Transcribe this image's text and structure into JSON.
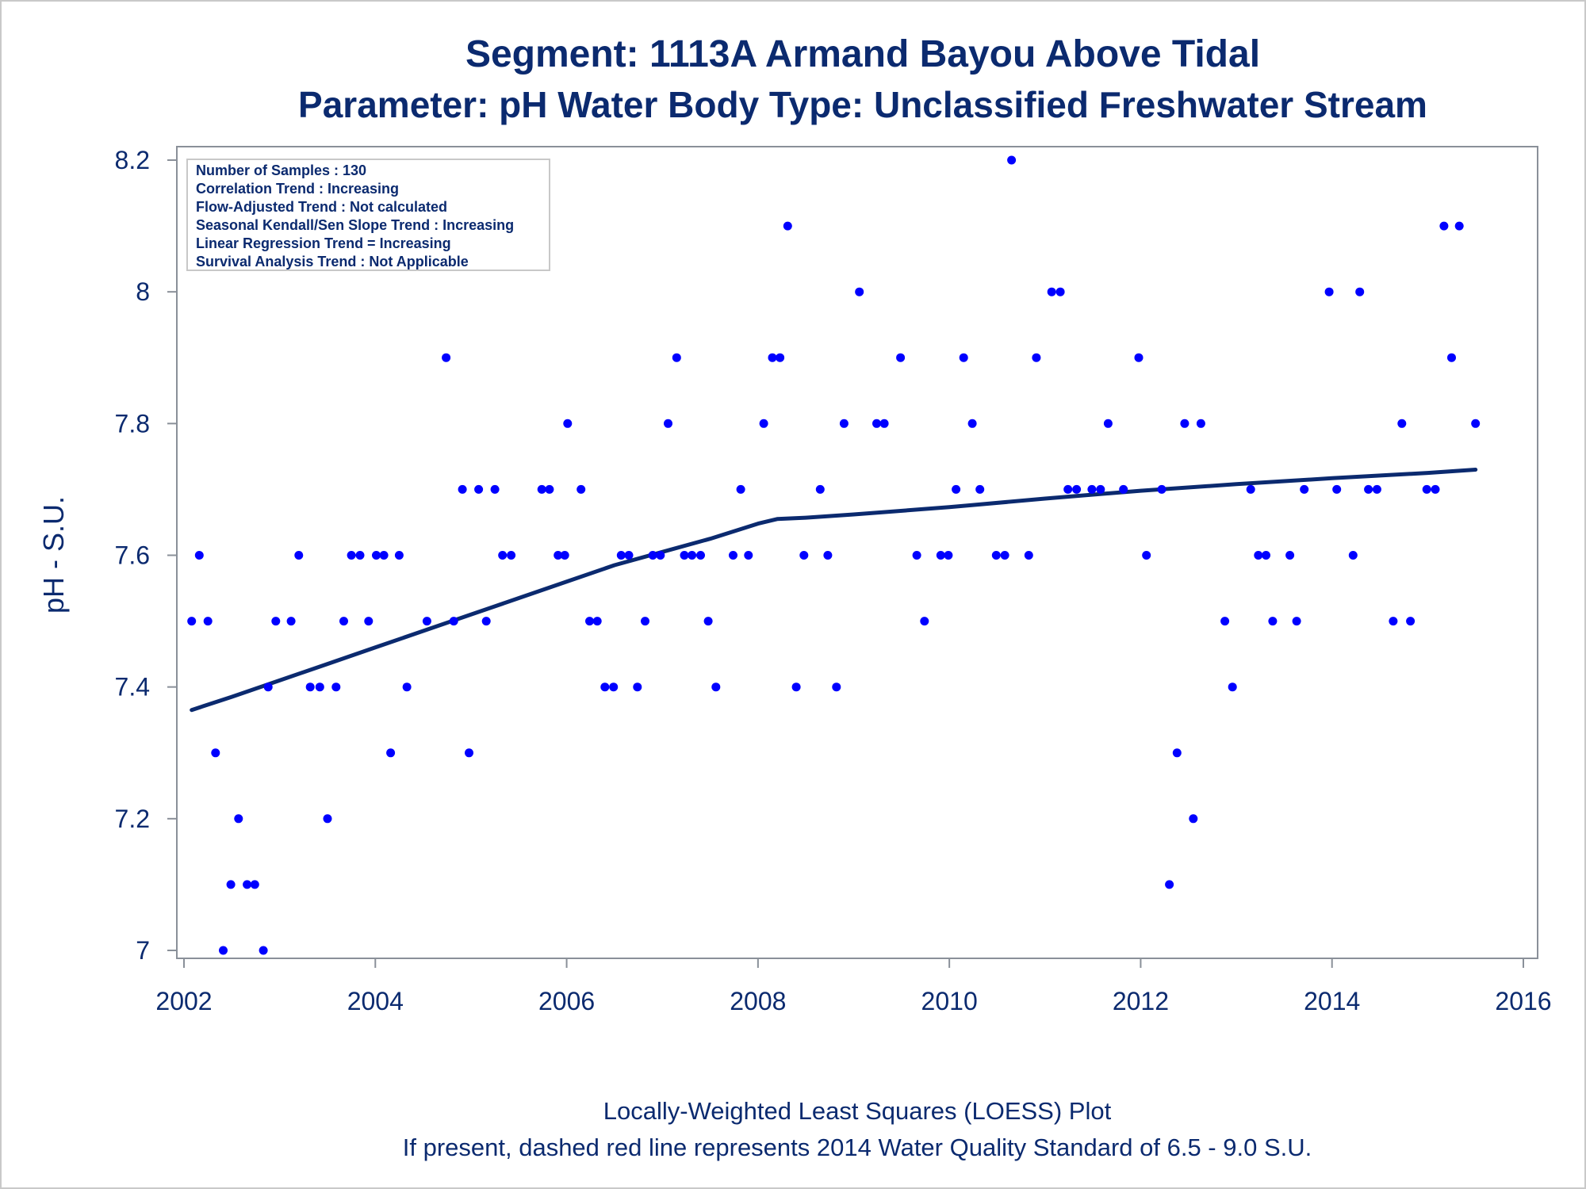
{
  "title_line1": "Segment: 1113A  Armand Bayou Above Tidal",
  "title_line2": "Parameter: pH   Water Body Type: Unclassified Freshwater Stream",
  "info_box": [
    "Number of Samples : 130",
    "Correlation Trend : Increasing",
    "Flow-Adjusted Trend : Not calculated",
    "Seasonal Kendall/Sen Slope Trend : Increasing",
    "Linear Regression Trend = Increasing",
    "Survival Analysis Trend : Not Applicable"
  ],
  "footnote_line1": "Locally-Weighted Least Squares (LOESS) Plot",
  "footnote_line2": "If present, dashed red line represents 2014 Water Quality Standard of 6.5 - 9.0 S.U.",
  "colors": {
    "text": "#0b2a6f",
    "points": "#0000ff",
    "trend": "#0b2a6f",
    "frame": "#8a9099"
  },
  "chart_data": {
    "type": "scatter",
    "xlabel": "",
    "ylabel": "pH - S.U.",
    "xlim": [
      2002,
      2016
    ],
    "ylim": [
      7.0,
      8.2
    ],
    "xticks": [
      2002,
      2004,
      2006,
      2008,
      2010,
      2012,
      2014,
      2016
    ],
    "yticks": [
      7.0,
      7.2,
      7.4,
      7.6,
      7.8,
      8.0,
      8.2
    ],
    "ytick_labels": [
      "7",
      "7.2",
      "7.4",
      "7.6",
      "7.8",
      "8",
      "8.2"
    ],
    "grid": false,
    "series": [
      {
        "type": "scatter",
        "points": [
          [
            2002.08,
            7.5
          ],
          [
            2002.16,
            7.6
          ],
          [
            2002.25,
            7.5
          ],
          [
            2002.33,
            7.3
          ],
          [
            2002.41,
            7.0
          ],
          [
            2002.49,
            7.1
          ],
          [
            2002.57,
            7.2
          ],
          [
            2002.66,
            7.1
          ],
          [
            2002.74,
            7.1
          ],
          [
            2002.83,
            7.0
          ],
          [
            2002.88,
            7.4
          ],
          [
            2002.96,
            7.5
          ],
          [
            2003.12,
            7.5
          ],
          [
            2003.2,
            7.6
          ],
          [
            2003.32,
            7.4
          ],
          [
            2003.42,
            7.4
          ],
          [
            2003.5,
            7.2
          ],
          [
            2003.59,
            7.4
          ],
          [
            2003.67,
            7.5
          ],
          [
            2003.75,
            7.6
          ],
          [
            2003.84,
            7.6
          ],
          [
            2003.93,
            7.5
          ],
          [
            2004.01,
            7.6
          ],
          [
            2004.09,
            7.6
          ],
          [
            2004.16,
            7.3
          ],
          [
            2004.25,
            7.6
          ],
          [
            2004.33,
            7.4
          ],
          [
            2004.54,
            7.5
          ],
          [
            2004.74,
            7.9
          ],
          [
            2004.82,
            7.5
          ],
          [
            2004.91,
            7.7
          ],
          [
            2004.98,
            7.3
          ],
          [
            2005.08,
            7.7
          ],
          [
            2005.16,
            7.5
          ],
          [
            2005.25,
            7.7
          ],
          [
            2005.33,
            7.6
          ],
          [
            2005.42,
            7.6
          ],
          [
            2005.74,
            7.7
          ],
          [
            2005.82,
            7.7
          ],
          [
            2005.91,
            7.6
          ],
          [
            2005.98,
            7.6
          ],
          [
            2006.01,
            7.8
          ],
          [
            2006.15,
            7.7
          ],
          [
            2006.24,
            7.5
          ],
          [
            2006.32,
            7.5
          ],
          [
            2006.4,
            7.4
          ],
          [
            2006.49,
            7.4
          ],
          [
            2006.57,
            7.6
          ],
          [
            2006.65,
            7.6
          ],
          [
            2006.74,
            7.4
          ],
          [
            2006.82,
            7.5
          ],
          [
            2006.9,
            7.6
          ],
          [
            2006.98,
            7.6
          ],
          [
            2007.06,
            7.8
          ],
          [
            2007.15,
            7.9
          ],
          [
            2007.23,
            7.6
          ],
          [
            2007.31,
            7.6
          ],
          [
            2007.4,
            7.6
          ],
          [
            2007.48,
            7.5
          ],
          [
            2007.56,
            7.4
          ],
          [
            2007.74,
            7.6
          ],
          [
            2007.82,
            7.7
          ],
          [
            2007.9,
            7.6
          ],
          [
            2008.06,
            7.8
          ],
          [
            2008.15,
            7.9
          ],
          [
            2008.23,
            7.9
          ],
          [
            2008.31,
            8.1
          ],
          [
            2008.4,
            7.4
          ],
          [
            2008.48,
            7.6
          ],
          [
            2008.65,
            7.7
          ],
          [
            2008.73,
            7.6
          ],
          [
            2008.82,
            7.4
          ],
          [
            2008.9,
            7.8
          ],
          [
            2009.06,
            8.0
          ],
          [
            2009.24,
            7.8
          ],
          [
            2009.32,
            7.8
          ],
          [
            2009.49,
            7.9
          ],
          [
            2009.66,
            7.6
          ],
          [
            2009.74,
            7.5
          ],
          [
            2009.91,
            7.6
          ],
          [
            2009.99,
            7.6
          ],
          [
            2010.07,
            7.7
          ],
          [
            2010.15,
            7.9
          ],
          [
            2010.24,
            7.8
          ],
          [
            2010.32,
            7.7
          ],
          [
            2010.49,
            7.6
          ],
          [
            2010.58,
            7.6
          ],
          [
            2010.65,
            8.2
          ],
          [
            2010.83,
            7.6
          ],
          [
            2010.91,
            7.9
          ],
          [
            2011.07,
            8.0
          ],
          [
            2011.16,
            8.0
          ],
          [
            2011.24,
            7.7
          ],
          [
            2011.33,
            7.7
          ],
          [
            2011.49,
            7.7
          ],
          [
            2011.58,
            7.7
          ],
          [
            2011.66,
            7.8
          ],
          [
            2011.82,
            7.7
          ],
          [
            2011.98,
            7.9
          ],
          [
            2012.06,
            7.6
          ],
          [
            2012.22,
            7.7
          ],
          [
            2012.3,
            7.1
          ],
          [
            2012.38,
            7.3
          ],
          [
            2012.46,
            7.8
          ],
          [
            2012.55,
            7.2
          ],
          [
            2012.63,
            7.8
          ],
          [
            2012.88,
            7.5
          ],
          [
            2012.96,
            7.4
          ],
          [
            2013.15,
            7.7
          ],
          [
            2013.23,
            7.6
          ],
          [
            2013.31,
            7.6
          ],
          [
            2013.38,
            7.5
          ],
          [
            2013.56,
            7.6
          ],
          [
            2013.63,
            7.5
          ],
          [
            2013.71,
            7.7
          ],
          [
            2013.97,
            8.0
          ],
          [
            2014.05,
            7.7
          ],
          [
            2014.22,
            7.6
          ],
          [
            2014.29,
            8.0
          ],
          [
            2014.38,
            7.7
          ],
          [
            2014.47,
            7.7
          ],
          [
            2014.64,
            7.5
          ],
          [
            2014.73,
            7.8
          ],
          [
            2014.82,
            7.5
          ],
          [
            2014.99,
            7.7
          ],
          [
            2015.08,
            7.7
          ],
          [
            2015.17,
            8.1
          ],
          [
            2015.25,
            7.9
          ],
          [
            2015.33,
            8.1
          ],
          [
            2015.5,
            7.8
          ]
        ]
      },
      {
        "type": "line",
        "points": [
          [
            2002.08,
            7.365
          ],
          [
            2002.5,
            7.385
          ],
          [
            2003.0,
            7.41
          ],
          [
            2003.5,
            7.435
          ],
          [
            2004.0,
            7.46
          ],
          [
            2004.5,
            7.485
          ],
          [
            2005.0,
            7.51
          ],
          [
            2005.5,
            7.535
          ],
          [
            2006.0,
            7.56
          ],
          [
            2006.5,
            7.585
          ],
          [
            2007.0,
            7.605
          ],
          [
            2007.5,
            7.625
          ],
          [
            2008.0,
            7.648
          ],
          [
            2008.2,
            7.655
          ],
          [
            2008.5,
            7.657
          ],
          [
            2009.0,
            7.662
          ],
          [
            2010.0,
            7.673
          ],
          [
            2011.0,
            7.686
          ],
          [
            2012.0,
            7.698
          ],
          [
            2013.0,
            7.708
          ],
          [
            2014.0,
            7.717
          ],
          [
            2015.0,
            7.725
          ],
          [
            2015.5,
            7.73
          ]
        ]
      }
    ]
  }
}
